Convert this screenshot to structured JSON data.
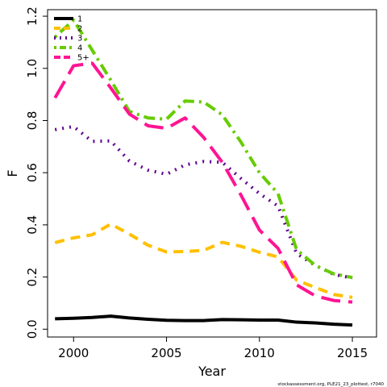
{
  "chart_data": {
    "type": "line",
    "xlabel": "Year",
    "ylabel": "F",
    "xlim": [
      1998.6,
      2016.3
    ],
    "ylim": [
      -0.03,
      1.225
    ],
    "xticks": [
      2000,
      2005,
      2010,
      2015
    ],
    "yticks": [
      0.0,
      0.2,
      0.4,
      0.6,
      0.8,
      1.0,
      1.2
    ],
    "ytick_labels": [
      "0.0",
      "0.2",
      "0.4",
      "0.6",
      "0.8",
      "1.0",
      "1.2"
    ],
    "legend_position": "top-left",
    "x": [
      1999,
      2000,
      2001,
      2002,
      2003,
      2004,
      2005,
      2006,
      2007,
      2008,
      2009,
      2010,
      2011,
      2012,
      2013,
      2014,
      2015
    ],
    "series": [
      {
        "name": "1",
        "color": "#000000",
        "dash": "solid",
        "values": [
          0.04,
          0.042,
          0.045,
          0.05,
          0.043,
          0.038,
          0.034,
          0.033,
          0.033,
          0.037,
          0.036,
          0.035,
          0.035,
          0.027,
          0.024,
          0.019,
          0.016
        ]
      },
      {
        "name": "2",
        "color": "#FFC000",
        "dash": "dashed",
        "values": [
          0.332,
          0.35,
          0.362,
          0.403,
          0.365,
          0.322,
          0.296,
          0.298,
          0.302,
          0.333,
          0.318,
          0.295,
          0.277,
          0.188,
          0.16,
          0.133,
          0.122
        ]
      },
      {
        "name": "3",
        "color": "#5F0090",
        "dash": "dotted",
        "values": [
          0.765,
          0.777,
          0.72,
          0.722,
          0.645,
          0.61,
          0.594,
          0.63,
          0.643,
          0.64,
          0.578,
          0.52,
          0.472,
          0.29,
          0.245,
          0.21,
          0.196
        ]
      },
      {
        "name": "4",
        "color": "#66CC00",
        "dash": "dotdash",
        "values": [
          1.12,
          1.185,
          1.07,
          0.955,
          0.835,
          0.81,
          0.805,
          0.875,
          0.871,
          0.822,
          0.718,
          0.6,
          0.52,
          0.305,
          0.245,
          0.212,
          0.198
        ]
      },
      {
        "name": "5+",
        "color": "#FF1493",
        "dash": "longdash",
        "values": [
          0.887,
          1.01,
          1.02,
          0.925,
          0.825,
          0.78,
          0.77,
          0.81,
          0.735,
          0.64,
          0.515,
          0.38,
          0.31,
          0.17,
          0.128,
          0.11,
          0.104
        ]
      }
    ],
    "footer": "stockassessment.org, PLE21_23_plottest, r7040"
  }
}
